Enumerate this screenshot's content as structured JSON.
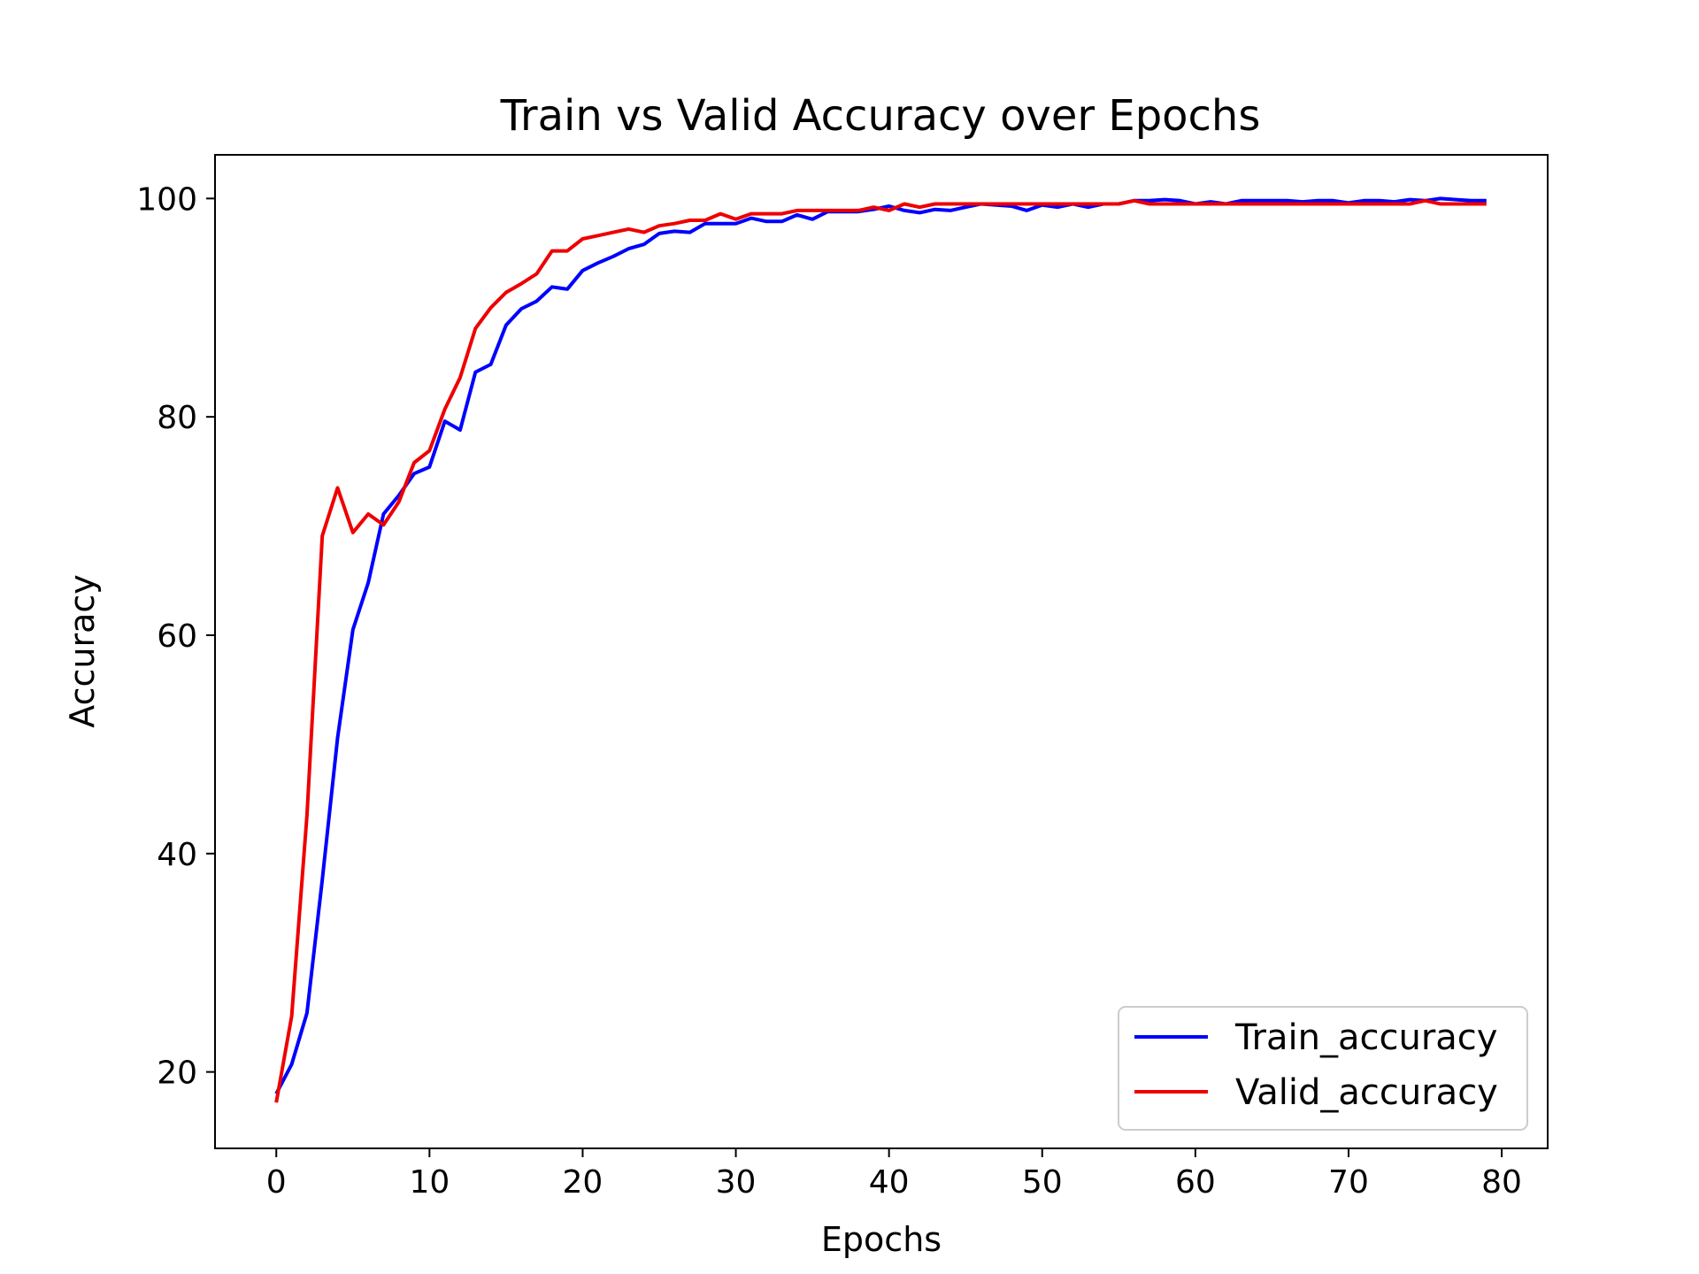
{
  "chart_data": {
    "type": "line",
    "title": "Train vs Valid Accuracy over Epochs",
    "xlabel": "Epochs",
    "ylabel": "Accuracy",
    "xlim": [
      -4,
      83
    ],
    "ylim": [
      13,
      104
    ],
    "xticks": [
      0,
      10,
      20,
      30,
      40,
      50,
      60,
      70,
      80
    ],
    "yticks": [
      20,
      40,
      60,
      80,
      100
    ],
    "grid": false,
    "legend_position": "lower-right",
    "series": [
      {
        "name": "Train_accuracy",
        "color": "#0000ff",
        "x": [
          0,
          1,
          2,
          3,
          4,
          5,
          6,
          7,
          8,
          9,
          10,
          11,
          12,
          13,
          14,
          15,
          16,
          17,
          18,
          19,
          20,
          21,
          22,
          23,
          24,
          25,
          26,
          27,
          28,
          29,
          30,
          31,
          32,
          33,
          34,
          35,
          36,
          37,
          38,
          39,
          40,
          41,
          42,
          43,
          44,
          45,
          46,
          47,
          48,
          49,
          50,
          51,
          52,
          53,
          54,
          55,
          56,
          57,
          58,
          59,
          60,
          61,
          62,
          63,
          64,
          65,
          66,
          67,
          68,
          69,
          70,
          71,
          72,
          73,
          74,
          75,
          76,
          77,
          78,
          79
        ],
        "values": [
          18.0,
          20.7,
          25.4,
          37.6,
          50.6,
          60.5,
          64.8,
          71.1,
          72.8,
          74.8,
          75.4,
          79.6,
          78.8,
          84.1,
          84.8,
          88.4,
          89.9,
          90.6,
          91.9,
          91.7,
          93.4,
          94.1,
          94.7,
          95.4,
          95.8,
          96.8,
          97.0,
          96.9,
          97.7,
          97.7,
          97.7,
          98.2,
          97.9,
          97.9,
          98.5,
          98.1,
          98.8,
          98.8,
          98.8,
          99.0,
          99.3,
          98.9,
          98.7,
          99.0,
          98.9,
          99.2,
          99.5,
          99.4,
          99.3,
          98.9,
          99.4,
          99.2,
          99.5,
          99.2,
          99.5,
          99.5,
          99.8,
          99.8,
          99.9,
          99.8,
          99.5,
          99.7,
          99.5,
          99.8,
          99.8,
          99.8,
          99.8,
          99.7,
          99.8,
          99.8,
          99.6,
          99.8,
          99.8,
          99.7,
          99.9,
          99.8,
          100.0,
          99.9,
          99.8,
          99.8
        ]
      },
      {
        "name": "Valid_accuracy",
        "color": "#ee0000",
        "x": [
          0,
          1,
          2,
          3,
          4,
          5,
          6,
          7,
          8,
          9,
          10,
          11,
          12,
          13,
          14,
          15,
          16,
          17,
          18,
          19,
          20,
          21,
          22,
          23,
          24,
          25,
          26,
          27,
          28,
          29,
          30,
          31,
          32,
          33,
          34,
          35,
          36,
          37,
          38,
          39,
          40,
          41,
          42,
          43,
          44,
          45,
          46,
          47,
          48,
          49,
          50,
          51,
          52,
          53,
          54,
          55,
          56,
          57,
          58,
          59,
          60,
          61,
          62,
          63,
          64,
          65,
          66,
          67,
          68,
          69,
          70,
          71,
          72,
          73,
          74,
          75,
          76,
          77,
          78,
          79
        ],
        "values": [
          17.2,
          25.1,
          43.5,
          69.1,
          73.5,
          69.4,
          71.1,
          70.1,
          72.2,
          75.8,
          76.9,
          80.7,
          83.6,
          88.1,
          90.0,
          91.4,
          92.2,
          93.1,
          95.2,
          95.2,
          96.3,
          96.6,
          96.9,
          97.2,
          96.9,
          97.5,
          97.7,
          98.0,
          98.0,
          98.6,
          98.1,
          98.6,
          98.6,
          98.6,
          98.9,
          98.9,
          98.9,
          98.9,
          98.9,
          99.2,
          98.9,
          99.5,
          99.2,
          99.5,
          99.5,
          99.5,
          99.5,
          99.5,
          99.5,
          99.5,
          99.5,
          99.5,
          99.5,
          99.5,
          99.5,
          99.5,
          99.8,
          99.5,
          99.5,
          99.5,
          99.5,
          99.5,
          99.5,
          99.5,
          99.5,
          99.5,
          99.5,
          99.5,
          99.5,
          99.5,
          99.5,
          99.5,
          99.5,
          99.5,
          99.5,
          99.8,
          99.5,
          99.5,
          99.5,
          99.5
        ]
      }
    ]
  }
}
